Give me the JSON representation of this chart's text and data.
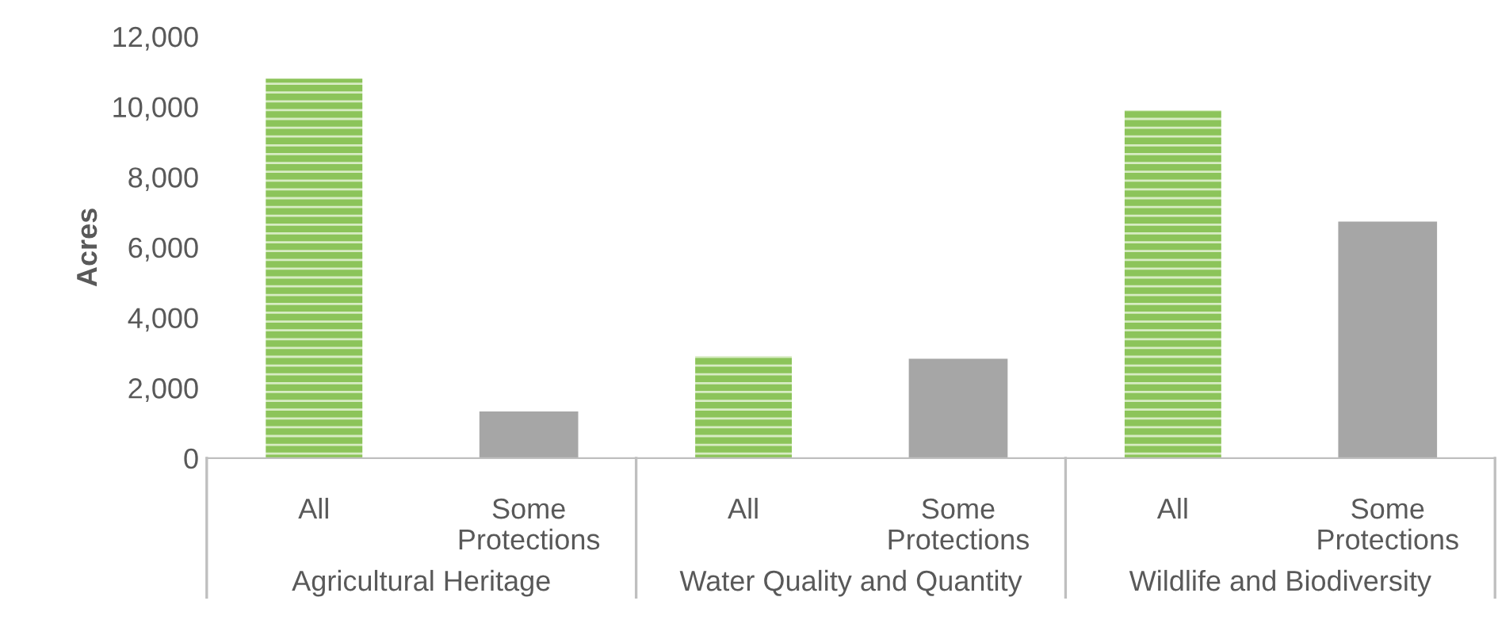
{
  "chart_data": {
    "type": "bar",
    "ylabel": "Acres",
    "categories": [
      "All",
      "Some Protections",
      "All",
      "Some Protections",
      "All",
      "Some Protections"
    ],
    "values": [
      10800,
      1300,
      2900,
      2800,
      9900,
      6700
    ],
    "colors": [
      "#8cc45a",
      "#a6a6a6",
      "#8cc45a",
      "#a6a6a6",
      "#8cc45a",
      "#a6a6a6"
    ],
    "annotations": [
      "Agricultural Heritage",
      "Water Quality and Quantity",
      "Wildlife and Biodiversity"
    ],
    "ylim": [
      0,
      12000
    ],
    "yticks": [
      {
        "value": 0,
        "label": "0"
      },
      {
        "value": 2000,
        "label": "2,000"
      },
      {
        "value": 4000,
        "label": "4,000"
      },
      {
        "value": 6000,
        "label": "6,000"
      },
      {
        "value": 8000,
        "label": "8,000"
      },
      {
        "value": 10000,
        "label": "10,000"
      },
      {
        "value": 12000,
        "label": "12,000"
      }
    ],
    "grid": false,
    "legend": false
  }
}
